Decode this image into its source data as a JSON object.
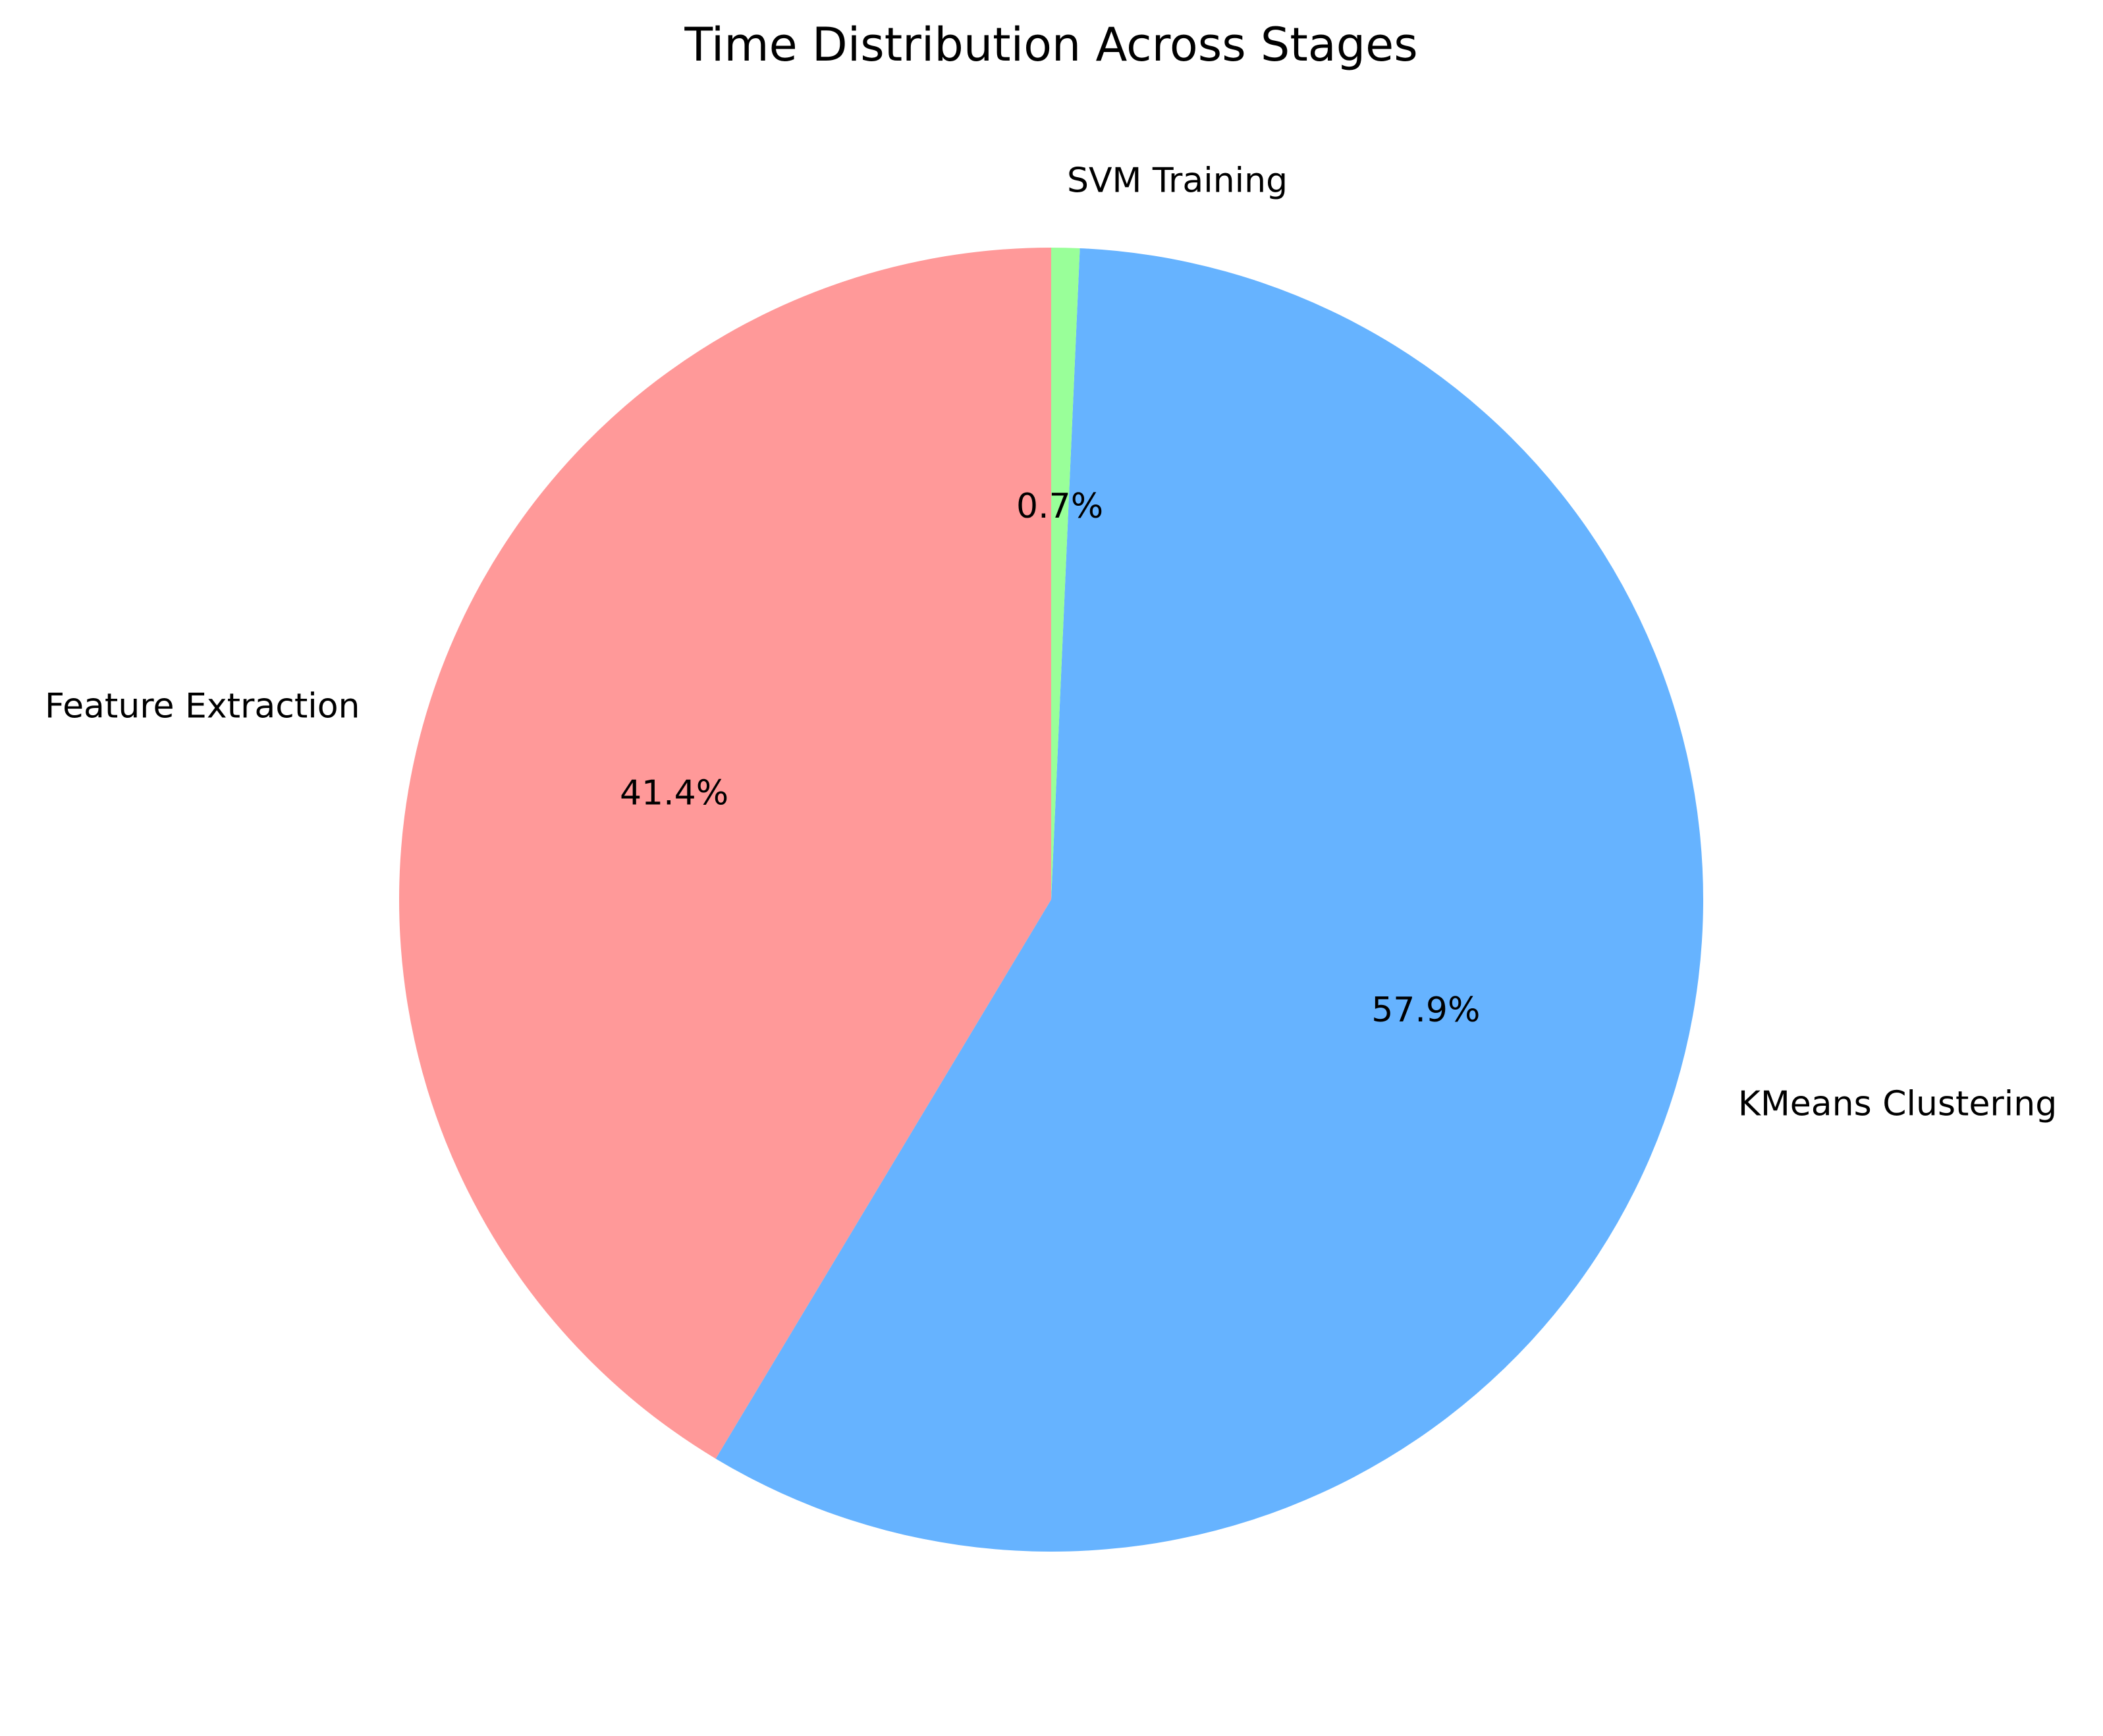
{
  "chart_data": {
    "type": "pie",
    "title": "Time Distribution Across Stages",
    "slices": [
      {
        "label": "Feature Extraction",
        "value": 41.4,
        "pct_label": "41.4%",
        "color": "#ff9999"
      },
      {
        "label": "KMeans Clustering",
        "value": 57.9,
        "pct_label": "57.9%",
        "color": "#66b3ff"
      },
      {
        "label": "SVM Training",
        "value": 0.7,
        "pct_label": "0.7%",
        "color": "#99ff99"
      }
    ],
    "start_angle": 90,
    "direction": "counterclockwise",
    "legend": "none"
  }
}
